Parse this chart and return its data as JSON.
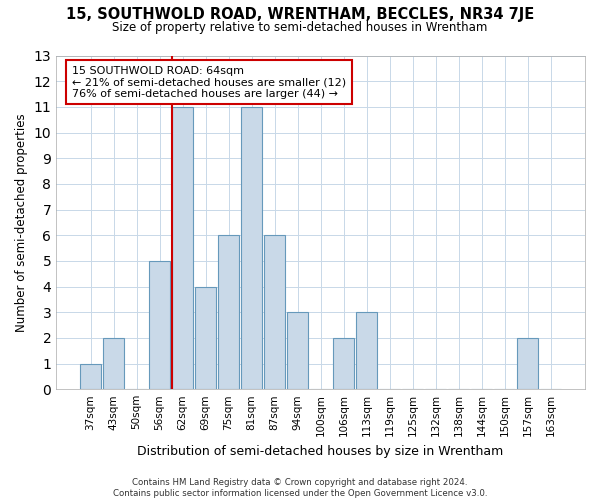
{
  "title": "15, SOUTHWOLD ROAD, WRENTHAM, BECCLES, NR34 7JE",
  "subtitle": "Size of property relative to semi-detached houses in Wrentham",
  "xlabel": "Distribution of semi-detached houses by size in Wrentham",
  "ylabel": "Number of semi-detached properties",
  "bar_labels": [
    "37sqm",
    "43sqm",
    "50sqm",
    "56sqm",
    "62sqm",
    "69sqm",
    "75sqm",
    "81sqm",
    "87sqm",
    "94sqm",
    "100sqm",
    "106sqm",
    "113sqm",
    "119sqm",
    "125sqm",
    "132sqm",
    "138sqm",
    "144sqm",
    "150sqm",
    "157sqm",
    "163sqm"
  ],
  "bar_values": [
    1,
    2,
    0,
    5,
    11,
    4,
    6,
    11,
    6,
    3,
    0,
    2,
    3,
    0,
    0,
    0,
    0,
    0,
    0,
    2,
    0
  ],
  "bar_color": "#c9d9e8",
  "bar_edge_color": "#6699bb",
  "subject_bar_index": 4,
  "subject_line_color": "#cc0000",
  "ylim": [
    0,
    13
  ],
  "yticks": [
    0,
    1,
    2,
    3,
    4,
    5,
    6,
    7,
    8,
    9,
    10,
    11,
    12,
    13
  ],
  "annotation_title": "15 SOUTHWOLD ROAD: 64sqm",
  "annotation_line1": "← 21% of semi-detached houses are smaller (12)",
  "annotation_line2": "76% of semi-detached houses are larger (44) →",
  "annotation_box_color": "#ffffff",
  "annotation_box_edge_color": "#cc0000",
  "footer_line1": "Contains HM Land Registry data © Crown copyright and database right 2024.",
  "footer_line2": "Contains public sector information licensed under the Open Government Licence v3.0.",
  "background_color": "#ffffff",
  "grid_color": "#c8d8e8"
}
